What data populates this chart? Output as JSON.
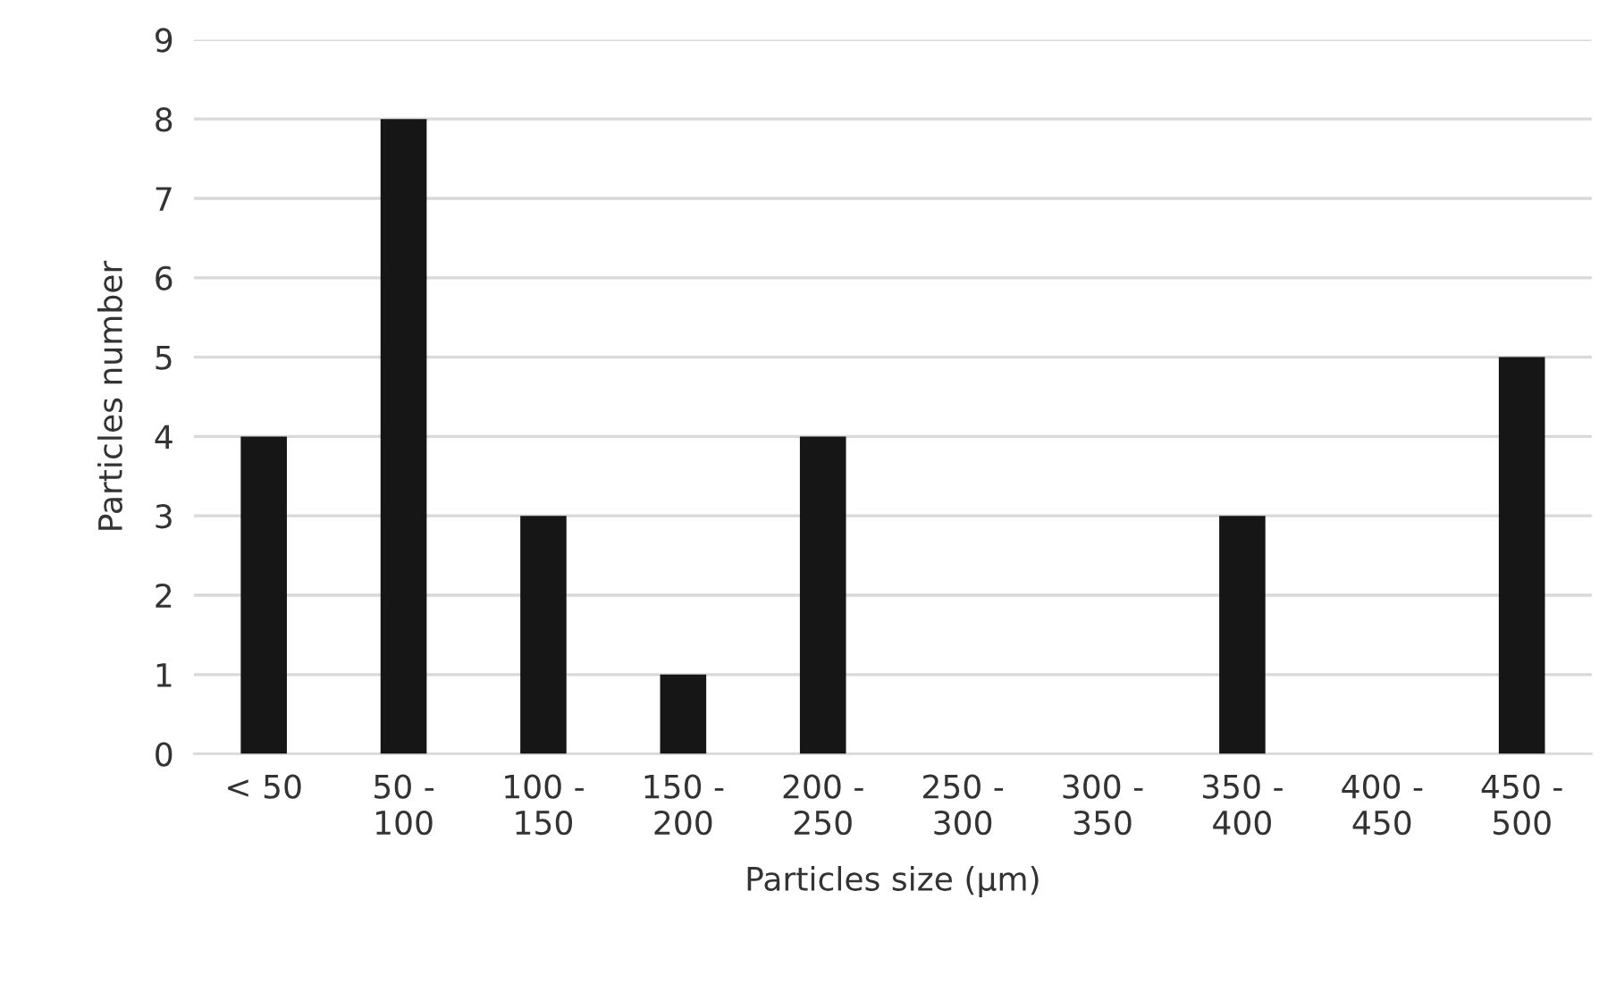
{
  "chart_data": {
    "type": "bar",
    "xlabel": "Particles size (µm)",
    "ylabel": "Particles number",
    "categories": [
      "< 50",
      "50 -\n100",
      "100 -\n150",
      "150 -\n200",
      "200 -\n250",
      "250 -\n300",
      "300 -\n350",
      "350 -\n400",
      "400 -\n450",
      "450 -\n500"
    ],
    "values": [
      4,
      8,
      3,
      1,
      4,
      0,
      0,
      3,
      0,
      5
    ],
    "color": "#161616",
    "ylim": [
      0,
      9
    ],
    "yticks": [
      0,
      1,
      2,
      3,
      4,
      5,
      6,
      7,
      8,
      9
    ],
    "grid": "y",
    "legend": false
  }
}
